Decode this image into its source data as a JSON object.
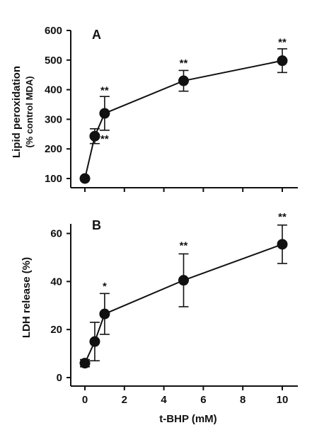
{
  "chart_data": [
    {
      "type": "line",
      "panel": "A",
      "ylabel_line1": "Lipid peroxidation",
      "ylabel_line2": "(% control MDA)",
      "xlabel": "",
      "ylim": [
        100,
        600
      ],
      "yticks": [
        100,
        200,
        300,
        400,
        500,
        600
      ],
      "xlim": [
        0,
        10
      ],
      "xticks": [
        0,
        2,
        4,
        6,
        8,
        10
      ],
      "show_x_tick_labels": false,
      "x": [
        0,
        0.5,
        1,
        5,
        10
      ],
      "y": [
        100,
        243,
        320,
        430,
        498
      ],
      "error": [
        0,
        25,
        57,
        35,
        40
      ],
      "significance": [
        {
          "x": 1,
          "y": 386,
          "text": "**"
        },
        {
          "x": 1,
          "y": 222,
          "text": "**"
        },
        {
          "x": 5,
          "y": 478,
          "text": "**"
        },
        {
          "x": 10,
          "y": 548,
          "text": "**"
        }
      ]
    },
    {
      "type": "line",
      "panel": "B",
      "ylabel": "LDH release (%)",
      "xlabel": "t-BHP (mM)",
      "ylim": [
        0,
        64
      ],
      "yticks": [
        0,
        20,
        40,
        60
      ],
      "xlim": [
        0,
        10
      ],
      "xticks": [
        0,
        2,
        4,
        6,
        8,
        10
      ],
      "show_x_tick_labels": true,
      "x": [
        0,
        0.5,
        1,
        5,
        10
      ],
      "y": [
        6,
        15,
        26.5,
        40.5,
        55.5
      ],
      "error": [
        1.5,
        8,
        8.5,
        11,
        8
      ],
      "significance": [
        {
          "x": 1,
          "y": 36.5,
          "text": "*"
        },
        {
          "x": 5,
          "y": 53.5,
          "text": "**"
        },
        {
          "x": 10,
          "y": 65.5,
          "text": "**"
        }
      ]
    }
  ]
}
